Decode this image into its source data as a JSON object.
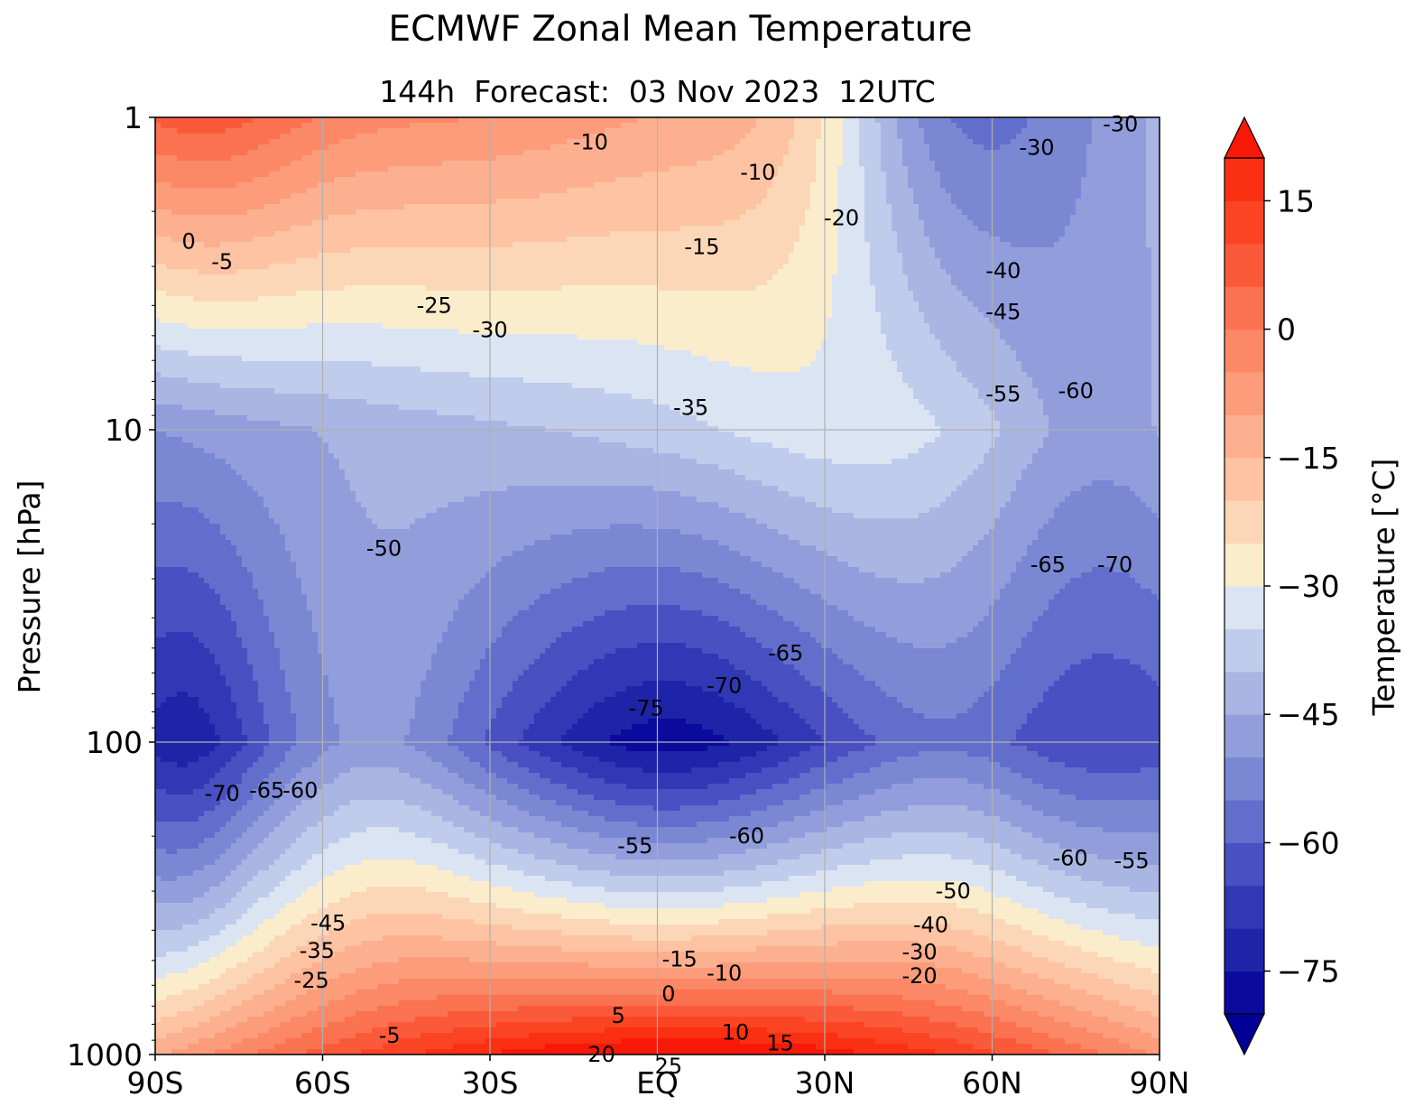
{
  "title": "ECMWF Zonal Mean Temperature",
  "subtitle": "144h  Forecast:  03 Nov 2023  12UTC",
  "chart_data": {
    "type": "contour",
    "title": "ECMWF Zonal Mean Temperature",
    "subtitle": "144h  Forecast:  03 Nov 2023  12UTC",
    "xlabel": "",
    "ylabel": "Pressure [hPa]",
    "x_ticks": [
      "90S",
      "60S",
      "30S",
      "EQ",
      "30N",
      "60N",
      "90N"
    ],
    "x_tick_values": [
      -90,
      -60,
      -30,
      0,
      30,
      60,
      90
    ],
    "xlim": [
      -90,
      90
    ],
    "y_scale": "log",
    "y_inverted": true,
    "y_ticks": [
      "1",
      "10",
      "100",
      "1000"
    ],
    "y_tick_values": [
      1,
      10,
      100,
      1000
    ],
    "ylim": [
      1000,
      1
    ],
    "grid": true,
    "colorbar": {
      "label": "Temperature [°C]",
      "ticks": [
        "−75",
        "−60",
        "−45",
        "−30",
        "−15",
        "0",
        "15"
      ],
      "tick_values": [
        -75,
        -60,
        -45,
        -30,
        -15,
        0,
        15
      ],
      "levels": [
        -80,
        -75,
        -70,
        -65,
        -60,
        -55,
        -50,
        -45,
        -40,
        -35,
        -30,
        -25,
        -20,
        -15,
        -10,
        -5,
        0,
        5,
        10,
        15,
        20
      ],
      "extend": "both",
      "colors": [
        "#0a0a9e",
        "#1e24a8",
        "#3038b6",
        "#4850c2",
        "#626ecc",
        "#7a88d4",
        "#929edc",
        "#a9b6e3",
        "#c0cceb",
        "#dae4f3",
        "#fbedcc",
        "#fcd7b7",
        "#fdc3a3",
        "#fcb090",
        "#fc9c7a",
        "#fb8866",
        "#fb7251",
        "#fb5a3a",
        "#fb4423",
        "#fb2f12"
      ]
    },
    "contour_labels": [
      {
        "value": "0",
        "lon": -84,
        "p": 2.5
      },
      {
        "value": "-5",
        "lon": -78,
        "p": 2.9
      },
      {
        "value": "-10",
        "lon": -12,
        "p": 1.2
      },
      {
        "value": "-10",
        "lon": 18,
        "p": 1.5
      },
      {
        "value": "-20",
        "lon": 33,
        "p": 2.1
      },
      {
        "value": "-15",
        "lon": 8,
        "p": 2.6
      },
      {
        "value": "-25",
        "lon": -40,
        "p": 4.0
      },
      {
        "value": "-30",
        "lon": -30,
        "p": 4.8
      },
      {
        "value": "-35",
        "lon": 6,
        "p": 8.5
      },
      {
        "value": "-30",
        "lon": 68,
        "p": 1.25
      },
      {
        "value": "-30",
        "lon": 83,
        "p": 1.05
      },
      {
        "value": "-40",
        "lon": 62,
        "p": 3.1
      },
      {
        "value": "-45",
        "lon": 62,
        "p": 4.2
      },
      {
        "value": "-55",
        "lon": 62,
        "p": 7.7
      },
      {
        "value": "-60",
        "lon": 75,
        "p": 7.5
      },
      {
        "value": "-50",
        "lon": -49,
        "p": 24
      },
      {
        "value": "-65",
        "lon": 70,
        "p": 27
      },
      {
        "value": "-70",
        "lon": 82,
        "p": 27
      },
      {
        "value": "-65",
        "lon": 23,
        "p": 52
      },
      {
        "value": "-70",
        "lon": 12,
        "p": 66
      },
      {
        "value": "-75",
        "lon": -2,
        "p": 78
      },
      {
        "value": "-70",
        "lon": -78,
        "p": 146
      },
      {
        "value": "-65",
        "lon": -70,
        "p": 143
      },
      {
        "value": "-60",
        "lon": -64,
        "p": 143
      },
      {
        "value": "-55",
        "lon": -4,
        "p": 215
      },
      {
        "value": "-60",
        "lon": 16,
        "p": 200
      },
      {
        "value": "-60",
        "lon": 74,
        "p": 235
      },
      {
        "value": "-55",
        "lon": 85,
        "p": 240
      },
      {
        "value": "-45",
        "lon": -59,
        "p": 380
      },
      {
        "value": "-35",
        "lon": -61,
        "p": 465
      },
      {
        "value": "-25",
        "lon": -62,
        "p": 580
      },
      {
        "value": "-5",
        "lon": -48,
        "p": 870
      },
      {
        "value": "-15",
        "lon": 4,
        "p": 495
      },
      {
        "value": "-10",
        "lon": 12,
        "p": 550
      },
      {
        "value": "0",
        "lon": 2,
        "p": 640
      },
      {
        "value": "5",
        "lon": -7,
        "p": 750
      },
      {
        "value": "10",
        "lon": 14,
        "p": 850
      },
      {
        "value": "15",
        "lon": 22,
        "p": 920
      },
      {
        "value": "20",
        "lon": -10,
        "p": 1000
      },
      {
        "value": "25",
        "lon": 2,
        "p": 1090
      },
      {
        "value": "-50",
        "lon": 53,
        "p": 300
      },
      {
        "value": "-40",
        "lon": 49,
        "p": 385
      },
      {
        "value": "-30",
        "lon": 47,
        "p": 470
      },
      {
        "value": "-20",
        "lon": 47,
        "p": 560
      }
    ]
  }
}
